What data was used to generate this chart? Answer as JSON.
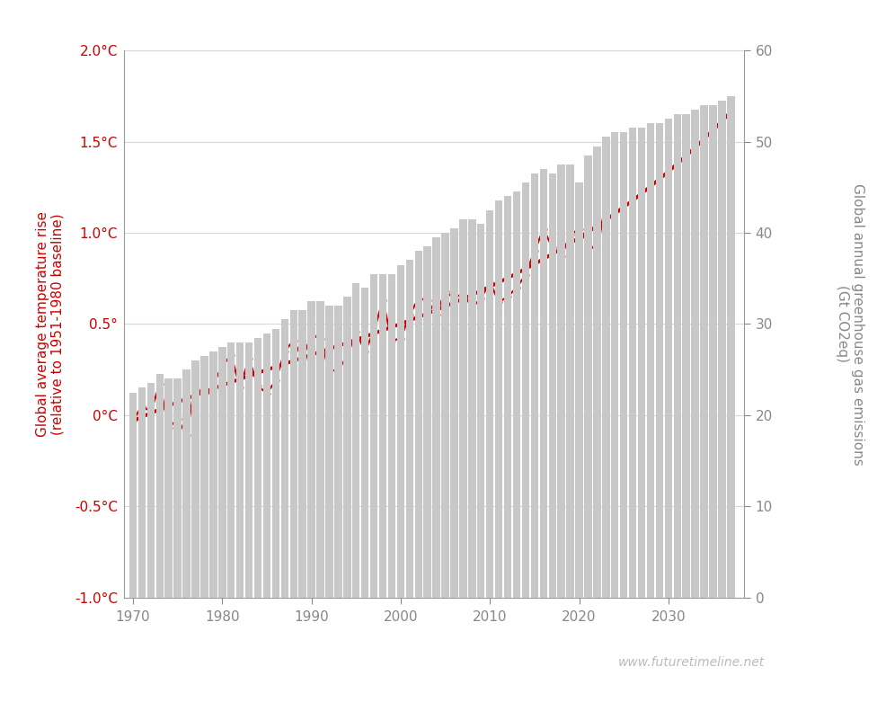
{
  "ylabel_left": "Global average temperature rise\n(relative to 1951-1980 baseline)",
  "ylabel_right_line1": "Global annual greenhouse gas emissions",
  "ylabel_right_line2": "(Gt CO2eq)",
  "website": "www.futuretimeline.net",
  "ylim_left": [
    -1.0,
    2.0
  ],
  "ylim_right": [
    0,
    60
  ],
  "xlim": [
    1969.0,
    2038.5
  ],
  "yticks_left": [
    -1.0,
    -0.5,
    0.0,
    0.5,
    1.0,
    1.5,
    2.0
  ],
  "ytick_labels_left": [
    "-1.0°C",
    "-0.5°C",
    "0°C",
    "0.5°",
    "1.0°C",
    "1.5°C",
    "2.0°C"
  ],
  "yticks_right": [
    0,
    10,
    20,
    30,
    40,
    50,
    60
  ],
  "xticks": [
    1970,
    1980,
    1990,
    2000,
    2010,
    2020,
    2030
  ],
  "bar_color": "#c8c8c8",
  "bar_years": [
    1970,
    1971,
    1972,
    1973,
    1974,
    1975,
    1976,
    1977,
    1978,
    1979,
    1980,
    1981,
    1982,
    1983,
    1984,
    1985,
    1986,
    1987,
    1988,
    1989,
    1990,
    1991,
    1992,
    1993,
    1994,
    1995,
    1996,
    1997,
    1998,
    1999,
    2000,
    2001,
    2002,
    2003,
    2004,
    2005,
    2006,
    2007,
    2008,
    2009,
    2010,
    2011,
    2012,
    2013,
    2014,
    2015,
    2016,
    2017,
    2018,
    2019,
    2020,
    2021,
    2022,
    2023,
    2024,
    2025,
    2026,
    2027,
    2028,
    2029,
    2030,
    2031,
    2032,
    2033,
    2034,
    2035,
    2036,
    2037
  ],
  "bar_values": [
    22.5,
    23.0,
    23.5,
    24.5,
    24.0,
    24.0,
    25.0,
    26.0,
    26.5,
    27.0,
    27.5,
    28.0,
    28.0,
    28.0,
    28.5,
    29.0,
    29.5,
    30.5,
    31.5,
    31.5,
    32.5,
    32.5,
    32.0,
    32.0,
    33.0,
    34.5,
    34.0,
    35.5,
    35.5,
    35.5,
    36.5,
    37.0,
    38.0,
    38.5,
    39.5,
    40.0,
    40.5,
    41.5,
    41.5,
    41.0,
    42.5,
    43.5,
    44.0,
    44.5,
    45.5,
    46.5,
    47.0,
    46.5,
    47.5,
    47.5,
    45.5,
    48.5,
    49.5,
    50.5,
    51.0,
    51.0,
    51.5,
    51.5,
    52.0,
    52.0,
    52.5,
    53.0,
    53.0,
    53.5,
    54.0,
    54.0,
    54.5,
    55.0
  ],
  "temp_years": [
    1970,
    1971,
    1972,
    1973,
    1974,
    1975,
    1976,
    1977,
    1978,
    1979,
    1980,
    1981,
    1982,
    1983,
    1984,
    1985,
    1986,
    1987,
    1988,
    1989,
    1990,
    1991,
    1992,
    1993,
    1994,
    1995,
    1996,
    1997,
    1998,
    1999,
    2000,
    2001,
    2002,
    2003,
    2004,
    2005,
    2006,
    2007,
    2008,
    2009,
    2010,
    2011,
    2012,
    2013,
    2014,
    2015,
    2016,
    2017,
    2018,
    2019,
    2020,
    2021,
    2022,
    2023
  ],
  "temp_values": [
    -0.03,
    0.05,
    0.02,
    0.17,
    -0.07,
    -0.02,
    -0.11,
    0.18,
    0.08,
    0.17,
    0.27,
    0.33,
    0.15,
    0.31,
    0.16,
    0.12,
    0.19,
    0.35,
    0.41,
    0.31,
    0.44,
    0.42,
    0.24,
    0.25,
    0.32,
    0.46,
    0.35,
    0.46,
    0.63,
    0.41,
    0.42,
    0.55,
    0.64,
    0.63,
    0.55,
    0.68,
    0.64,
    0.67,
    0.59,
    0.64,
    0.73,
    0.62,
    0.65,
    0.7,
    0.77,
    0.9,
    1.02,
    0.92,
    0.87,
    0.99,
    1.02,
    0.94,
    0.9,
    1.17
  ],
  "trend_color": "#cc0000",
  "line_color": "#cc0000",
  "dot_color": "#cc0000",
  "background_color": "#ffffff",
  "grid_color": "#d8d8d8",
  "axis_color": "#999999",
  "label_color_left": "#cc0000",
  "label_color_right": "#888888",
  "tick_color_x": "#888888",
  "website_color": "#bbbbbb",
  "figsize": [
    9.86,
    8.01
  ],
  "dpi": 100
}
